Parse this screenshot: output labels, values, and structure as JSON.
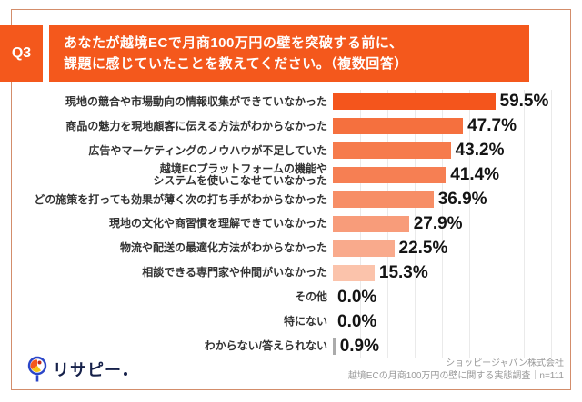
{
  "header": {
    "q_label": "Q3",
    "title_line1": "あなたが越境ECで月商100万円の壁を突破する前に、",
    "title_line2": "課題に感じていたことを教えてください。（複数回答）"
  },
  "chart_data": {
    "type": "bar",
    "orientation": "horizontal",
    "unit": "%",
    "xlim": [
      0,
      80
    ],
    "grid": "vertical, every 10%",
    "categories": [
      "現地の競合や市場動向の情報収集ができていなかった",
      "商品の魅力を現地顧客に伝える方法がわからなかった",
      "広告やマーケティングのノウハウが不足していた",
      "越境ECプラットフォームの機能や\nシステムを使いこなせていなかった",
      "どの施策を打っても効果が薄く次の打ち手がわからなかった",
      "現地の文化や商習慣を理解できていなかった",
      "物流や配送の最適化方法がわからなかった",
      "相談できる専門家や仲間がいなかった",
      "その他",
      "特にない",
      "わからない/答えられない"
    ],
    "values": [
      59.5,
      47.7,
      43.2,
      41.4,
      36.9,
      27.9,
      22.5,
      15.3,
      0.0,
      0.0,
      0.9
    ],
    "value_labels": [
      "59.5%",
      "47.7%",
      "43.2%",
      "41.4%",
      "36.9%",
      "27.9%",
      "22.5%",
      "15.3%",
      "0.0%",
      "0.0%",
      "0.9%"
    ],
    "bar_colors": [
      "#F4551C",
      "#F5703E",
      "#F67B4C",
      "#F67F53",
      "#F78E66",
      "#F89C7A",
      "#F9AA8C",
      "#FBC3AB",
      "#FCD9C9",
      "#FCD9C9",
      "#ABABAB"
    ],
    "n": 111
  },
  "footer": {
    "logo_text": "リサピー",
    "source_line1": "ショッピージャパン株式会社",
    "source_line2": "越境ECの月商100万円の壁に関する実態調査｜n=111"
  },
  "colors": {
    "accent": "#F4581C",
    "card_border": "#D38D6B",
    "label_text": "#333333",
    "value_text": "#141414",
    "source_text": "#999999",
    "logo_navy": "#16214A",
    "logo_blue": "#2B46C8"
  }
}
